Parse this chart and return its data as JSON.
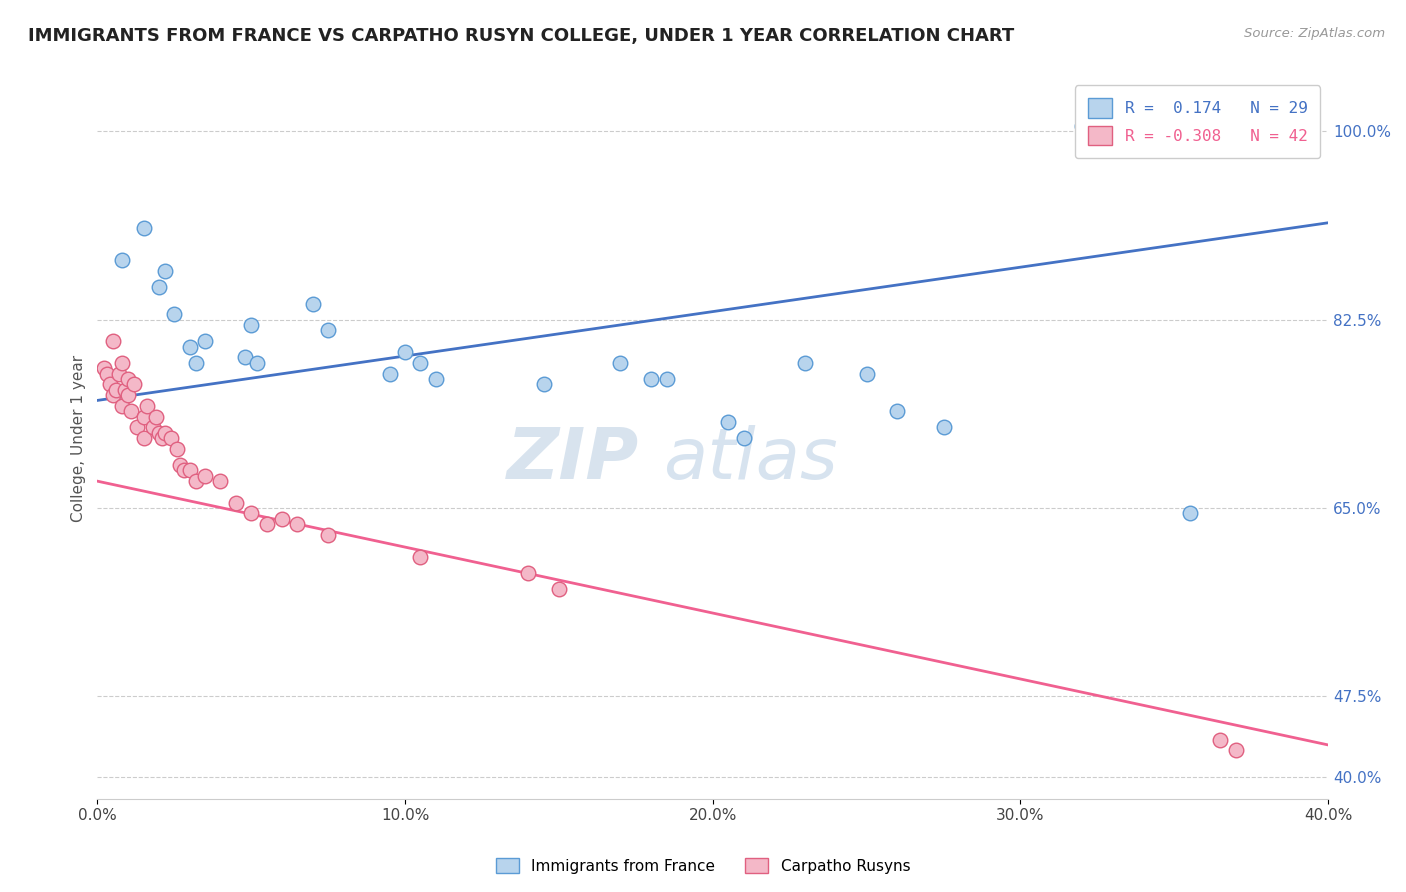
{
  "title": "IMMIGRANTS FROM FRANCE VS CARPATHO RUSYN COLLEGE, UNDER 1 YEAR CORRELATION CHART",
  "source": "Source: ZipAtlas.com",
  "ylabel": "College, Under 1 year",
  "xticklabels": [
    "0.0%",
    "10.0%",
    "20.0%",
    "30.0%",
    "40.0%"
  ],
  "yticklabels_right": [
    "40.0%",
    "47.5%",
    "65.0%",
    "82.5%",
    "100.0%"
  ],
  "xlim": [
    0.0,
    40.0
  ],
  "ylim": [
    38.0,
    105.0
  ],
  "ytick_vals": [
    40.0,
    47.5,
    65.0,
    82.5,
    100.0
  ],
  "legend_line1": "R =  0.174   N = 29",
  "legend_line2": "R = -0.308   N = 42",
  "color_blue_fill": "#b8d4ed",
  "color_blue_edge": "#5b9bd5",
  "color_blue_line": "#4472c4",
  "color_pink_fill": "#f4b8c8",
  "color_pink_edge": "#e06080",
  "color_pink_line": "#f06090",
  "color_right_labels": "#4472c4",
  "watermark_zip": "ZIP",
  "watermark_atlas": "atlas",
  "blue_trend_x": [
    0.0,
    40.0
  ],
  "blue_trend_y": [
    75.0,
    91.5
  ],
  "pink_trend_x": [
    0.0,
    40.0
  ],
  "pink_trend_y": [
    67.5,
    43.0
  ],
  "blue_scatter_x": [
    0.8,
    1.5,
    2.0,
    2.2,
    2.5,
    3.0,
    3.2,
    3.5,
    4.8,
    5.0,
    5.2,
    7.0,
    7.5,
    9.5,
    10.0,
    10.5,
    11.0,
    14.5,
    17.0,
    18.0,
    18.5,
    20.5,
    21.0,
    23.0,
    25.0,
    26.0,
    27.5,
    32.0,
    35.5
  ],
  "blue_scatter_y": [
    88.0,
    91.0,
    85.5,
    87.0,
    83.0,
    80.0,
    78.5,
    80.5,
    79.0,
    82.0,
    78.5,
    84.0,
    81.5,
    77.5,
    79.5,
    78.5,
    77.0,
    76.5,
    78.5,
    77.0,
    77.0,
    73.0,
    71.5,
    78.5,
    77.5,
    74.0,
    72.5,
    100.5,
    64.5
  ],
  "pink_scatter_x": [
    0.2,
    0.3,
    0.4,
    0.5,
    0.5,
    0.6,
    0.7,
    0.8,
    0.8,
    0.9,
    1.0,
    1.0,
    1.1,
    1.2,
    1.3,
    1.5,
    1.5,
    1.6,
    1.8,
    1.9,
    2.0,
    2.1,
    2.2,
    2.4,
    2.6,
    2.7,
    2.8,
    3.0,
    3.2,
    3.5,
    4.0,
    4.5,
    5.0,
    5.5,
    6.0,
    6.5,
    7.5,
    10.5,
    14.0,
    15.0,
    36.5,
    37.0
  ],
  "pink_scatter_y": [
    78.0,
    77.5,
    76.5,
    80.5,
    75.5,
    76.0,
    77.5,
    78.5,
    74.5,
    76.0,
    77.0,
    75.5,
    74.0,
    76.5,
    72.5,
    73.5,
    71.5,
    74.5,
    72.5,
    73.5,
    72.0,
    71.5,
    72.0,
    71.5,
    70.5,
    69.0,
    68.5,
    68.5,
    67.5,
    68.0,
    67.5,
    65.5,
    64.5,
    63.5,
    64.0,
    63.5,
    62.5,
    60.5,
    59.0,
    57.5,
    43.5,
    42.5
  ]
}
